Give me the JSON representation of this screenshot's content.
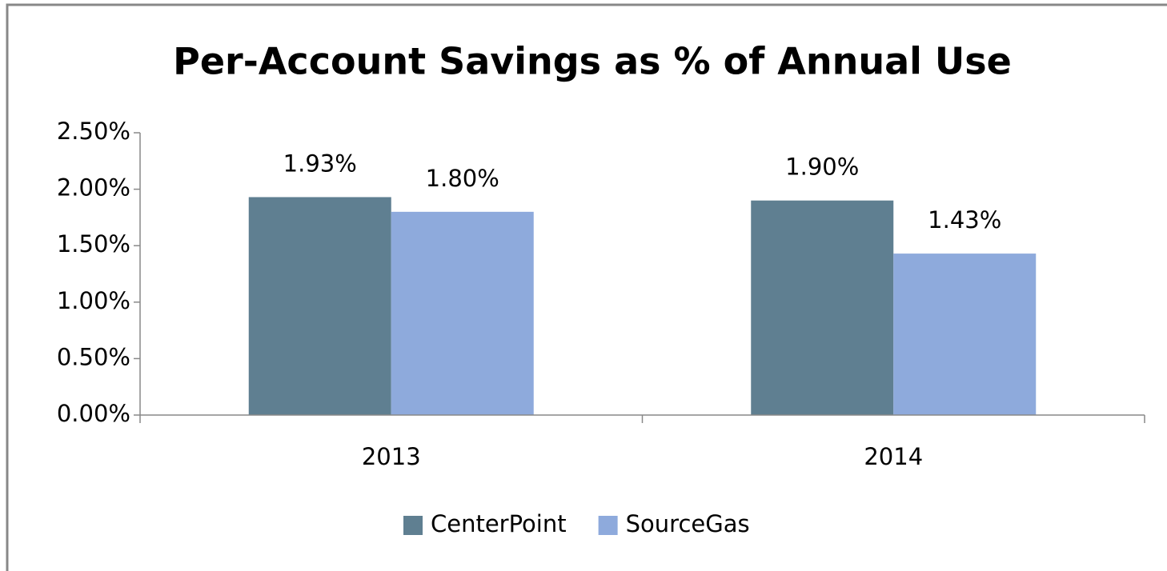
{
  "chart_data": {
    "type": "bar",
    "title": "Per-Account Savings as % of Annual Use",
    "categories": [
      "2013",
      "2014"
    ],
    "series": [
      {
        "name": "CenterPoint",
        "color": "#5f7f91",
        "values": [
          1.93,
          1.9
        ],
        "value_labels": [
          "1.93%",
          "1.90%"
        ]
      },
      {
        "name": "SourceGas",
        "color": "#8eaadc",
        "values": [
          1.8,
          1.43
        ],
        "value_labels": [
          "1.80%",
          "1.43%"
        ]
      }
    ],
    "ylim": [
      0,
      2.5
    ],
    "yticks": [
      {
        "value": 0,
        "label": "0.00%"
      },
      {
        "value": 0.5,
        "label": "0.50%"
      },
      {
        "value": 1,
        "label": "1.00%"
      },
      {
        "value": 1.5,
        "label": "1.50%"
      },
      {
        "value": 2,
        "label": "2.00%"
      },
      {
        "value": 2.5,
        "label": "2.50%"
      }
    ],
    "grid": false,
    "legend": "bottom"
  }
}
